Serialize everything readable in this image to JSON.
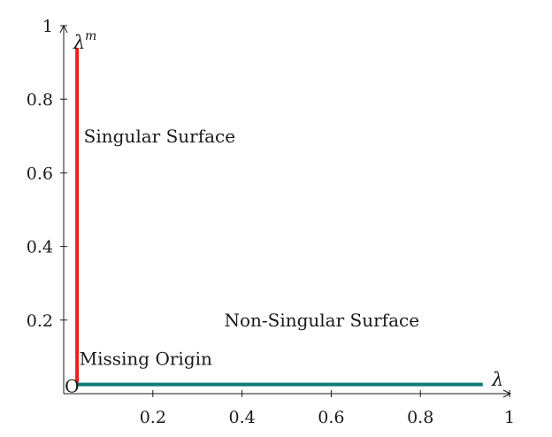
{
  "chart_data": {
    "type": "line",
    "title": "",
    "xlabel": "λ",
    "ylabel": "λ",
    "ylabel_superscript": "m",
    "xlim": [
      0,
      1
    ],
    "ylim": [
      0,
      1
    ],
    "x_ticks": [
      {
        "value": 0.2,
        "label": "0.2"
      },
      {
        "value": 0.4,
        "label": "0.4"
      },
      {
        "value": 0.6,
        "label": "0.6"
      },
      {
        "value": 0.8,
        "label": "0.8"
      },
      {
        "value": 1.0,
        "label": "1"
      }
    ],
    "y_ticks": [
      {
        "value": 0.2,
        "label": "0.2"
      },
      {
        "value": 0.4,
        "label": "0.4"
      },
      {
        "value": 0.6,
        "label": "0.6"
      },
      {
        "value": 0.8,
        "label": "0.8"
      },
      {
        "value": 1.0,
        "label": "1"
      }
    ],
    "grid": false,
    "segments": [
      {
        "key": "singular",
        "color": "#e8211b",
        "points": [
          [
            0.03,
            0.03
          ],
          [
            0.03,
            0.94
          ]
        ]
      },
      {
        "key": "non_singular",
        "color": "#0f7b7a",
        "points": [
          [
            0.03,
            0.025
          ],
          [
            0.94,
            0.025
          ]
        ]
      }
    ],
    "origin_marker": {
      "label": "O",
      "x": 0.03,
      "y": 0.025
    },
    "annotations": [
      {
        "key": "singular_surface",
        "text": "Singular Surface",
        "x": 0.045,
        "y": 0.7
      },
      {
        "key": "non_singular_surface",
        "text": "Non-Singular Surface",
        "x": 0.36,
        "y": 0.2
      },
      {
        "key": "missing_origin",
        "text": "Missing Origin",
        "x": 0.035,
        "y": 0.095
      }
    ]
  }
}
